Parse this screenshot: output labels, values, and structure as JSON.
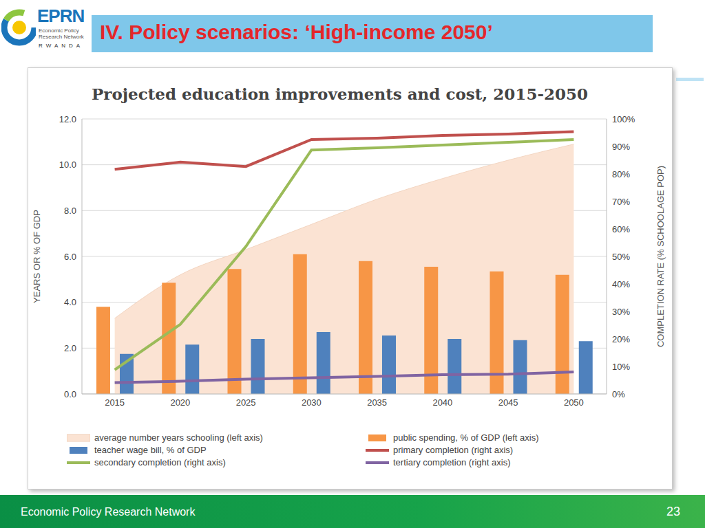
{
  "slide": {
    "heading": "IV. Policy scenarios: ‘High-income 2050’",
    "logo": {
      "name": "EPRN",
      "lines": [
        "Economic Policy",
        "Research Network"
      ],
      "country": "RWANDA"
    },
    "footer": "Economic Policy Research Network",
    "page": "23"
  },
  "chart_data": {
    "type": "bar",
    "title": "Projected education improvements and cost, 2015-2050",
    "ylabel": "YEARS OR % OF GDP",
    "y2label": "COMPLETION RATE (% SCHOOLAGE POP)",
    "categories": [
      "2015",
      "2020",
      "2025",
      "2030",
      "2035",
      "2040",
      "2045",
      "2050"
    ],
    "ylim": [
      0,
      12
    ],
    "yticks": [
      {
        "value": 0,
        "label": "0.0"
      },
      {
        "value": 2,
        "label": "2.0"
      },
      {
        "value": 4,
        "label": "4.0"
      },
      {
        "value": 6,
        "label": "6.0"
      },
      {
        "value": 8,
        "label": "8.0"
      },
      {
        "value": 10,
        "label": "10.0"
      },
      {
        "value": 12,
        "label": "12.0"
      }
    ],
    "y2lim": [
      0,
      100
    ],
    "y2ticks": [
      {
        "value": 0,
        "label": "0%"
      },
      {
        "value": 10,
        "label": "10%"
      },
      {
        "value": 20,
        "label": "20%"
      },
      {
        "value": 30,
        "label": "30%"
      },
      {
        "value": 40,
        "label": "40%"
      },
      {
        "value": 50,
        "label": "50%"
      },
      {
        "value": 60,
        "label": "60%"
      },
      {
        "value": 70,
        "label": "70%"
      },
      {
        "value": 80,
        "label": "80%"
      },
      {
        "value": 90,
        "label": "90%"
      },
      {
        "value": 100,
        "label": "100%"
      }
    ],
    "grid": true,
    "legend": "bottom",
    "series": [
      {
        "name": "average number years schooling (left axis)",
        "type": "area",
        "color": "#fbe3d3",
        "values": [
          3.3,
          5.2,
          6.3,
          7.4,
          8.5,
          9.4,
          10.2,
          10.9
        ]
      },
      {
        "name": "public spending, % of GDP (left axis)",
        "type": "bar",
        "color": "#f79646",
        "values": [
          3.8,
          4.85,
          5.45,
          6.1,
          5.8,
          5.55,
          5.35,
          5.2
        ]
      },
      {
        "name": "teacher wage bill, % of GDP",
        "type": "bar",
        "color": "#4f81bd",
        "values": [
          1.75,
          2.15,
          2.4,
          2.7,
          2.55,
          2.4,
          2.35,
          2.3
        ]
      },
      {
        "name": "primary completion (right axis)",
        "type": "line",
        "axis": "y2",
        "color": "#c0504d",
        "values": [
          81.7,
          84.3,
          82.7,
          92.5,
          93.0,
          94.0,
          94.5,
          95.4
        ]
      },
      {
        "name": "secondary completion (right axis)",
        "type": "line",
        "axis": "y2",
        "color": "#9bbb59",
        "values": [
          8.8,
          25.3,
          53.6,
          88.7,
          89.5,
          90.5,
          91.5,
          92.5
        ]
      },
      {
        "name": "tertiary completion (right axis)",
        "type": "line",
        "axis": "y2",
        "color": "#8064a2",
        "values": [
          4.1,
          4.6,
          5.4,
          5.9,
          6.4,
          7.0,
          7.2,
          8.0
        ]
      }
    ]
  }
}
